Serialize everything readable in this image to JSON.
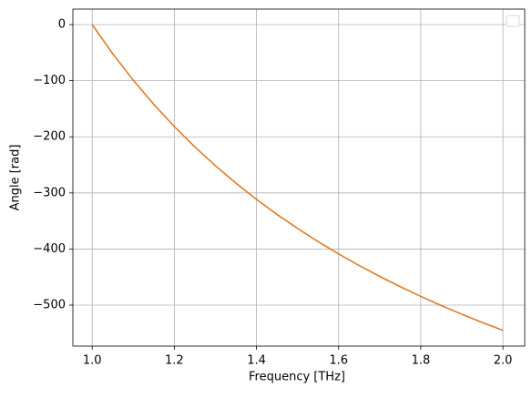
{
  "chart_data": {
    "type": "line",
    "xlabel": "Frequency [THz]",
    "ylabel": "Angle [rad]",
    "x": [
      1.0,
      1.05,
      1.1,
      1.15,
      1.2,
      1.25,
      1.3,
      1.35,
      1.4,
      1.45,
      1.5,
      1.55,
      1.6,
      1.65,
      1.7,
      1.75,
      1.8,
      1.85,
      1.9,
      1.95,
      2.0
    ],
    "series": [
      {
        "color": "#e07b24",
        "values": [
          0,
          -51.9,
          -99.1,
          -142.2,
          -181.7,
          -218,
          -251.5,
          -282.6,
          -311.4,
          -338.3,
          -363.3,
          -386.8,
          -408.8,
          -429.4,
          -448.8,
          -467.1,
          -484.4,
          -500.8,
          -516.3,
          -531.0,
          -545
        ]
      }
    ],
    "xlim": [
      0.953,
      2.053
    ],
    "ylim": [
      -573,
      27.6
    ],
    "xticks": [
      {
        "value": 1,
        "label": "1.0"
      },
      1.2,
      1.4,
      1.6,
      1.8,
      {
        "value": 2,
        "label": "2.0"
      }
    ],
    "yticks": [
      0,
      {
        "value": -100,
        "label": "−100"
      },
      {
        "value": -200,
        "label": "−200"
      },
      {
        "value": -300,
        "label": "−300"
      },
      {
        "value": -400,
        "label": "−400"
      },
      {
        "value": -500,
        "label": "−500"
      }
    ],
    "grid": true
  }
}
